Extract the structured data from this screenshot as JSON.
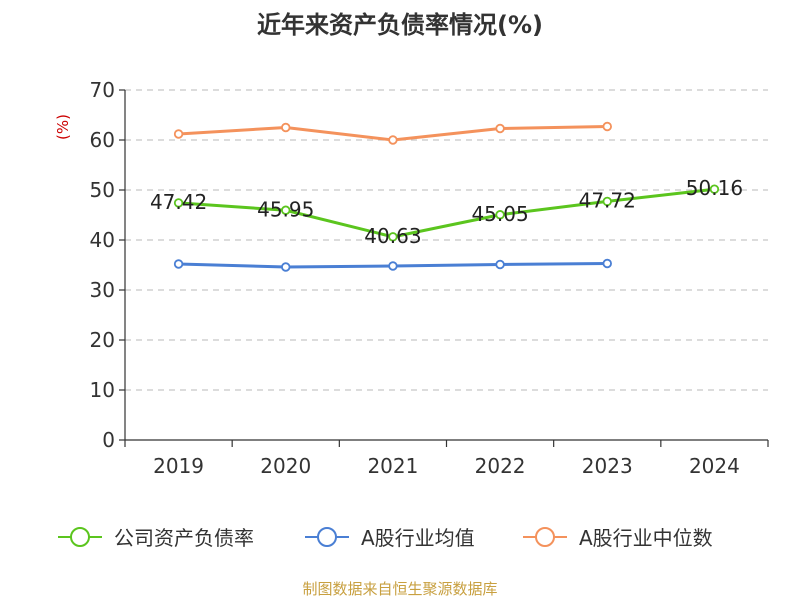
{
  "chart_data": {
    "type": "line",
    "title": "近年来资产负债率情况(%)",
    "ylabel": "(%)",
    "xlabel": "",
    "categories": [
      "2019",
      "2020",
      "2021",
      "2022",
      "2023",
      "2024"
    ],
    "ylim": [
      0,
      70
    ],
    "yticks": [
      0,
      10,
      20,
      30,
      40,
      50,
      60,
      70
    ],
    "grid": true,
    "legend_position": "bottom",
    "series": [
      {
        "name": "公司资产负债率",
        "color": "#5bc51e",
        "values": [
          47.42,
          45.95,
          40.63,
          45.05,
          47.72,
          50.16
        ],
        "labels": [
          "47.42",
          "45.95",
          "40.63",
          "45.05",
          "47.72",
          "50.16"
        ]
      },
      {
        "name": "A股行业均值",
        "color": "#4a7fd4",
        "values": [
          35.2,
          34.6,
          34.8,
          35.1,
          35.3,
          null
        ]
      },
      {
        "name": "A股行业中位数",
        "color": "#f4925c",
        "values": [
          61.2,
          62.5,
          60.0,
          62.3,
          62.7,
          null
        ]
      }
    ]
  },
  "source": "制图数据来自恒生聚源数据库"
}
